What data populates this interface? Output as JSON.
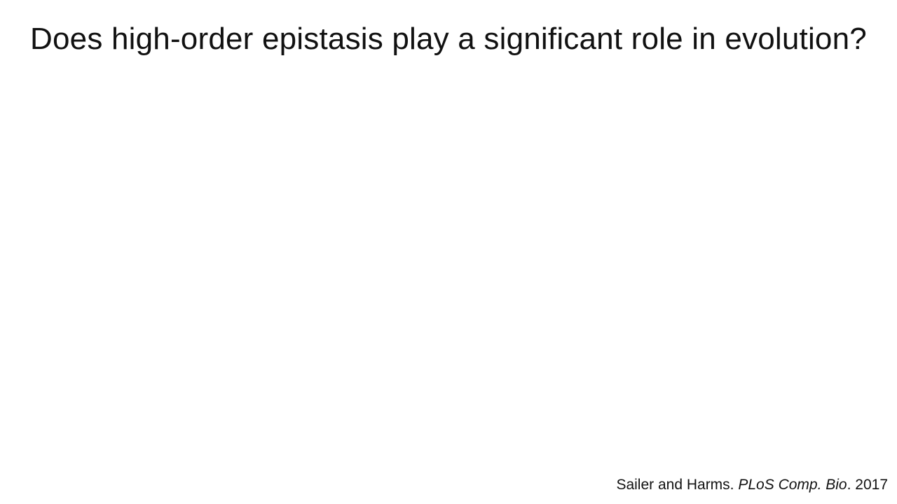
{
  "slide": {
    "title": "Does high-order epistasis play a significant role in evolution?",
    "citation": {
      "authors": "Sailer and Harms.",
      "journal": "PLoS Comp. Bio",
      "year_suffix": ". 2017"
    }
  }
}
